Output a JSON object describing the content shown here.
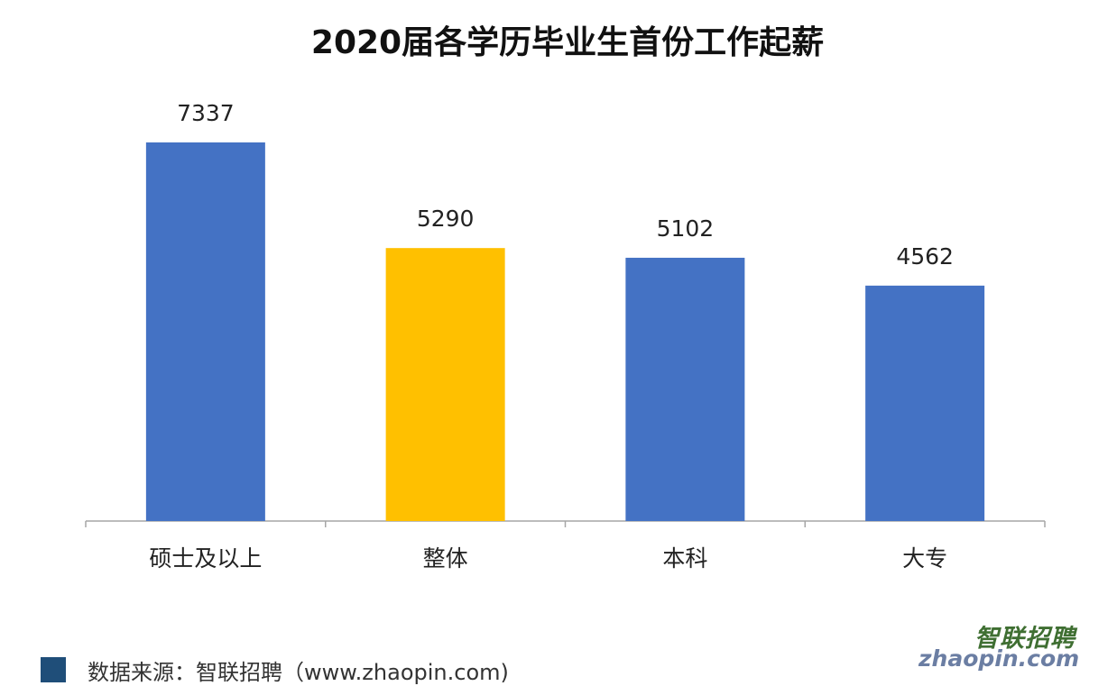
{
  "chart_data": {
    "type": "bar",
    "title": "2020届各学历毕业生首份工作起薪",
    "categories": [
      "硕士及以上",
      "整体",
      "本科",
      "大专"
    ],
    "values": [
      7337,
      5290,
      5102,
      4562
    ],
    "bar_colors": [
      "#4472c4",
      "#ffc000",
      "#4472c4",
      "#4472c4"
    ],
    "xlabel": "",
    "ylabel": "",
    "ylim": [
      0,
      8000
    ],
    "grid": false,
    "data_labels": true
  },
  "footer": {
    "source": "数据来源：智联招聘（www.zhaopin.com)",
    "swatch_color": "#1f4e79"
  },
  "watermark": {
    "logo_text": "智联招聘",
    "domain_text": "zhaopin.com"
  }
}
